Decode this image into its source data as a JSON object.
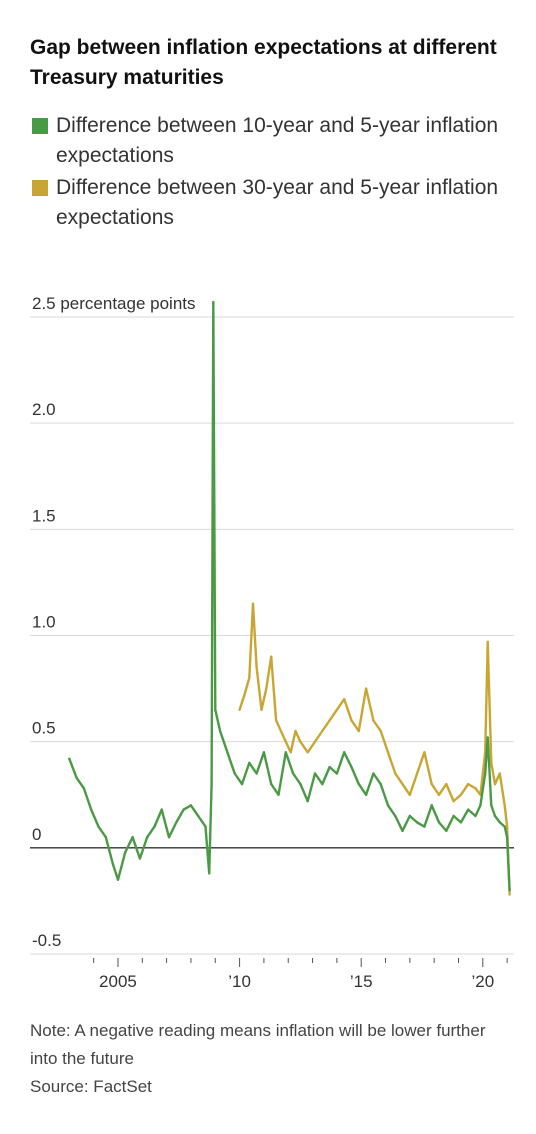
{
  "title": "Gap between inflation expectations at different Treasury maturities",
  "legend": [
    {
      "label": "Difference between 10-year and 5-year inflation expectations",
      "color": "#4a9a45"
    },
    {
      "label": "Difference between 30-year and 5-year inflation expectations",
      "color": "#c9a633"
    }
  ],
  "note": "Note: A negative reading means inflation will be lower further into the future",
  "source": "Source: FactSet",
  "chart_data": {
    "type": "line",
    "title": "Gap between inflation expectations at different Treasury maturities",
    "ylabel": "",
    "y_unit_label": "percentage points",
    "ylim": [
      -0.5,
      2.5
    ],
    "yticks": [
      {
        "value": 2.5,
        "label": "2.5 percentage points"
      },
      {
        "value": 2.0,
        "label": "2.0"
      },
      {
        "value": 1.5,
        "label": "1.5"
      },
      {
        "value": 1.0,
        "label": "1.0"
      },
      {
        "value": 0.5,
        "label": "0.5"
      },
      {
        "value": 0,
        "label": "0"
      },
      {
        "value": -0.5,
        "label": "-0.5"
      }
    ],
    "xlim": [
      2002.0,
      2021.2
    ],
    "xticks": [
      {
        "value": 2005,
        "label": "2005"
      },
      {
        "value": 2010,
        "label": "’10"
      },
      {
        "value": 2015,
        "label": "’15"
      },
      {
        "value": 2020,
        "label": "’20"
      }
    ],
    "minor_xticks": [
      2004,
      2006,
      2007,
      2008,
      2009,
      2011,
      2012,
      2013,
      2014,
      2016,
      2017,
      2018,
      2019,
      2021
    ],
    "grid": true,
    "legend_position": "top",
    "series": [
      {
        "name": "Difference between 10-year and 5-year inflation expectations",
        "color": "#4a9a45",
        "x": [
          2003.0,
          2003.3,
          2003.6,
          2003.9,
          2004.2,
          2004.5,
          2004.8,
          2005.0,
          2005.3,
          2005.6,
          2005.9,
          2006.2,
          2006.5,
          2006.8,
          2007.1,
          2007.4,
          2007.7,
          2008.0,
          2008.3,
          2008.6,
          2008.75,
          2008.85,
          2008.92,
          2009.0,
          2009.2,
          2009.5,
          2009.8,
          2010.1,
          2010.4,
          2010.7,
          2011.0,
          2011.3,
          2011.6,
          2011.9,
          2012.2,
          2012.5,
          2012.8,
          2013.1,
          2013.4,
          2013.7,
          2014.0,
          2014.3,
          2014.6,
          2014.9,
          2015.2,
          2015.5,
          2015.8,
          2016.1,
          2016.4,
          2016.7,
          2017.0,
          2017.3,
          2017.6,
          2017.9,
          2018.2,
          2018.5,
          2018.8,
          2019.1,
          2019.4,
          2019.7,
          2019.9,
          2020.1,
          2020.2,
          2020.35,
          2020.5,
          2020.7,
          2020.9,
          2021.0,
          2021.1
        ],
        "values": [
          0.42,
          0.33,
          0.28,
          0.18,
          0.1,
          0.05,
          -0.08,
          -0.15,
          -0.02,
          0.05,
          -0.05,
          0.05,
          0.1,
          0.18,
          0.05,
          0.12,
          0.18,
          0.2,
          0.15,
          0.1,
          -0.12,
          0.3,
          2.57,
          0.65,
          0.55,
          0.45,
          0.35,
          0.3,
          0.4,
          0.35,
          0.45,
          0.3,
          0.25,
          0.45,
          0.35,
          0.3,
          0.22,
          0.35,
          0.3,
          0.38,
          0.35,
          0.45,
          0.38,
          0.3,
          0.25,
          0.35,
          0.3,
          0.2,
          0.15,
          0.08,
          0.15,
          0.12,
          0.1,
          0.2,
          0.12,
          0.08,
          0.15,
          0.12,
          0.18,
          0.15,
          0.2,
          0.35,
          0.52,
          0.2,
          0.15,
          0.12,
          0.1,
          0.05,
          -0.2
        ]
      },
      {
        "name": "Difference between 30-year and 5-year inflation expectations",
        "color": "#c9a633",
        "x": [
          2010.0,
          2010.2,
          2010.4,
          2010.55,
          2010.7,
          2010.9,
          2011.1,
          2011.3,
          2011.5,
          2011.7,
          2011.9,
          2012.1,
          2012.3,
          2012.5,
          2012.8,
          2013.1,
          2013.4,
          2013.7,
          2014.0,
          2014.3,
          2014.6,
          2014.9,
          2015.2,
          2015.5,
          2015.8,
          2016.1,
          2016.4,
          2016.7,
          2017.0,
          2017.3,
          2017.6,
          2017.9,
          2018.2,
          2018.5,
          2018.8,
          2019.1,
          2019.4,
          2019.7,
          2019.9,
          2020.1,
          2020.2,
          2020.35,
          2020.5,
          2020.7,
          2020.9,
          2021.0,
          2021.1
        ],
        "values": [
          0.65,
          0.72,
          0.8,
          1.15,
          0.85,
          0.65,
          0.75,
          0.9,
          0.6,
          0.55,
          0.5,
          0.45,
          0.55,
          0.5,
          0.45,
          0.5,
          0.55,
          0.6,
          0.65,
          0.7,
          0.6,
          0.55,
          0.75,
          0.6,
          0.55,
          0.45,
          0.35,
          0.3,
          0.25,
          0.35,
          0.45,
          0.3,
          0.25,
          0.3,
          0.22,
          0.25,
          0.3,
          0.28,
          0.25,
          0.45,
          0.97,
          0.4,
          0.3,
          0.35,
          0.2,
          0.1,
          -0.22
        ]
      }
    ]
  }
}
